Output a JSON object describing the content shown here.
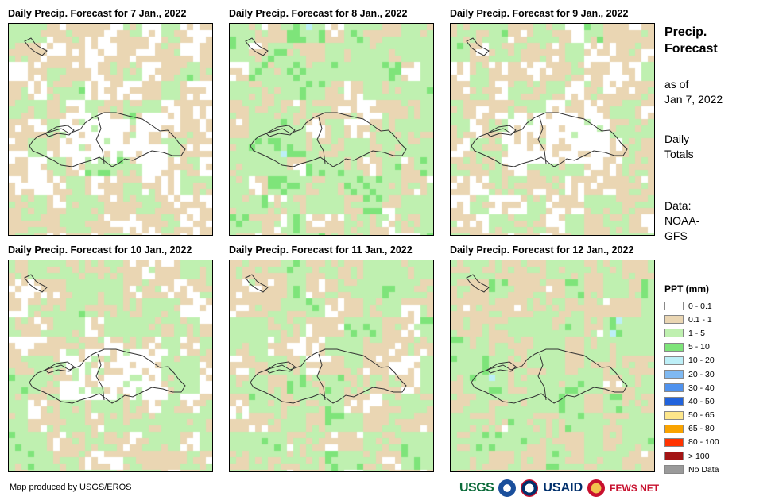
{
  "panels": [
    {
      "title": "Daily Precip. Forecast for 7 Jan., 2022",
      "seed": 7
    },
    {
      "title": "Daily Precip. Forecast for 8 Jan., 2022",
      "seed": 8
    },
    {
      "title": "Daily Precip. Forecast for 9 Jan., 2022",
      "seed": 9
    },
    {
      "title": "Daily Precip. Forecast for 10 Jan., 2022",
      "seed": 10
    },
    {
      "title": "Daily Precip. Forecast for 11 Jan., 2022",
      "seed": 11
    },
    {
      "title": "Daily Precip. Forecast for 12 Jan., 2022",
      "seed": 12
    }
  ],
  "sidebar": {
    "title_line1": "Precip.",
    "title_line2": "Forecast",
    "asof_line1": "as of",
    "asof_line2": "Jan 7, 2022",
    "totals_line1": "Daily",
    "totals_line2": "Totals",
    "data_line1": "Data:",
    "data_line2": "NOAA-",
    "data_line3": "GFS"
  },
  "legend": {
    "title": "PPT (mm)",
    "items": [
      {
        "label": "0 - 0.1",
        "color": "#ffffff"
      },
      {
        "label": "0.1 - 1",
        "color": "#ead6b3"
      },
      {
        "label": "1 - 5",
        "color": "#bff0b0"
      },
      {
        "label": "5 - 10",
        "color": "#7ee47a"
      },
      {
        "label": "10 - 20",
        "color": "#bdeff7"
      },
      {
        "label": "20 - 30",
        "color": "#7fb9f2"
      },
      {
        "label": "30 - 40",
        "color": "#4f92ee"
      },
      {
        "label": "40 - 50",
        "color": "#2163dc"
      },
      {
        "label": "50 - 65",
        "color": "#fde68a"
      },
      {
        "label": "65 - 80",
        "color": "#f9a300"
      },
      {
        "label": "80 - 100",
        "color": "#ff3300"
      },
      {
        "label": "> 100",
        "color": "#a31414"
      },
      {
        "label": "No Data",
        "color": "#9a9a9a"
      }
    ]
  },
  "credit": "Map produced by USGS/EROS",
  "logos": {
    "usgs": "USGS",
    "usaid": "USAID",
    "fews": "FEWS NET"
  }
}
